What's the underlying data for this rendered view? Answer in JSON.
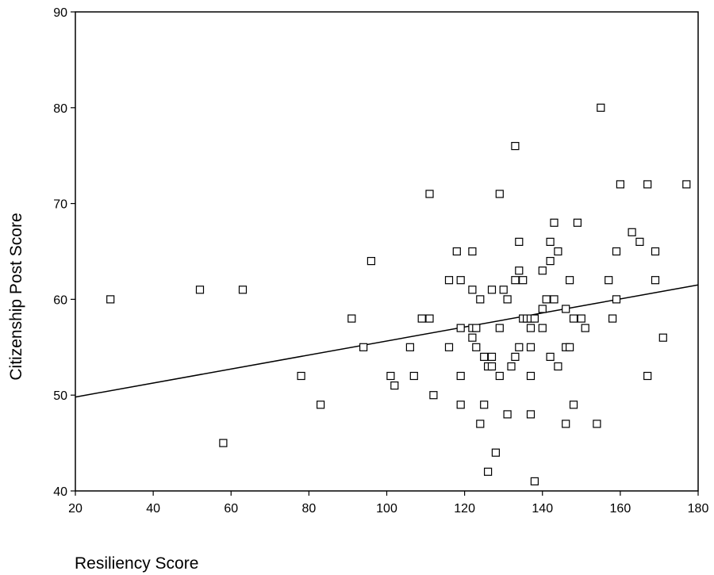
{
  "chart_data": {
    "type": "scatter",
    "xlabel": "Resiliency Score",
    "ylabel": "Citizenship Post Score",
    "xlim": [
      20,
      180
    ],
    "ylim": [
      40,
      90
    ],
    "xticks": [
      "20",
      "40",
      "60",
      "80",
      "100",
      "120",
      "140",
      "160",
      "180"
    ],
    "yticks": [
      "40",
      "50",
      "60",
      "70",
      "80",
      "90"
    ],
    "grid": false,
    "legend": "none",
    "fit_line": {
      "x": [
        20,
        180
      ],
      "y": [
        49.8,
        61.5
      ]
    },
    "points": [
      [
        29,
        60
      ],
      [
        52,
        61
      ],
      [
        58,
        45
      ],
      [
        63,
        61
      ],
      [
        78,
        52
      ],
      [
        83,
        49
      ],
      [
        91,
        58
      ],
      [
        94,
        55
      ],
      [
        96,
        64
      ],
      [
        101,
        52
      ],
      [
        102,
        51
      ],
      [
        106,
        55
      ],
      [
        107,
        52
      ],
      [
        109,
        58
      ],
      [
        111,
        58
      ],
      [
        111,
        71
      ],
      [
        112,
        50
      ],
      [
        116,
        55
      ],
      [
        116,
        62
      ],
      [
        118,
        65
      ],
      [
        119,
        62
      ],
      [
        119,
        57
      ],
      [
        119,
        52
      ],
      [
        119,
        49
      ],
      [
        122,
        65
      ],
      [
        122,
        61
      ],
      [
        122,
        57
      ],
      [
        122,
        56
      ],
      [
        123,
        57
      ],
      [
        123,
        55
      ],
      [
        124,
        60
      ],
      [
        124,
        47
      ],
      [
        125,
        54
      ],
      [
        125,
        49
      ],
      [
        126,
        53
      ],
      [
        126,
        42
      ],
      [
        127,
        61
      ],
      [
        127,
        54
      ],
      [
        127,
        53
      ],
      [
        128,
        44
      ],
      [
        129,
        71
      ],
      [
        129,
        57
      ],
      [
        129,
        52
      ],
      [
        130,
        61
      ],
      [
        131,
        60
      ],
      [
        131,
        48
      ],
      [
        132,
        53
      ],
      [
        133,
        76
      ],
      [
        133,
        62
      ],
      [
        133,
        54
      ],
      [
        134,
        66
      ],
      [
        134,
        63
      ],
      [
        134,
        55
      ],
      [
        135,
        62
      ],
      [
        135,
        58
      ],
      [
        136,
        58
      ],
      [
        137,
        58
      ],
      [
        137,
        57
      ],
      [
        137,
        55
      ],
      [
        137,
        52
      ],
      [
        137,
        48
      ],
      [
        138,
        58
      ],
      [
        138,
        41
      ],
      [
        140,
        63
      ],
      [
        140,
        59
      ],
      [
        140,
        57
      ],
      [
        141,
        60
      ],
      [
        142,
        66
      ],
      [
        142,
        64
      ],
      [
        142,
        54
      ],
      [
        143,
        68
      ],
      [
        143,
        60
      ],
      [
        144,
        65
      ],
      [
        144,
        53
      ],
      [
        146,
        59
      ],
      [
        146,
        55
      ],
      [
        146,
        47
      ],
      [
        147,
        62
      ],
      [
        147,
        55
      ],
      [
        148,
        58
      ],
      [
        148,
        49
      ],
      [
        149,
        68
      ],
      [
        150,
        58
      ],
      [
        151,
        57
      ],
      [
        154,
        47
      ],
      [
        155,
        80
      ],
      [
        157,
        62
      ],
      [
        158,
        58
      ],
      [
        159,
        65
      ],
      [
        159,
        60
      ],
      [
        160,
        72
      ],
      [
        163,
        67
      ],
      [
        165,
        66
      ],
      [
        167,
        72
      ],
      [
        167,
        52
      ],
      [
        169,
        65
      ],
      [
        169,
        62
      ],
      [
        171,
        56
      ],
      [
        177,
        72
      ]
    ]
  }
}
